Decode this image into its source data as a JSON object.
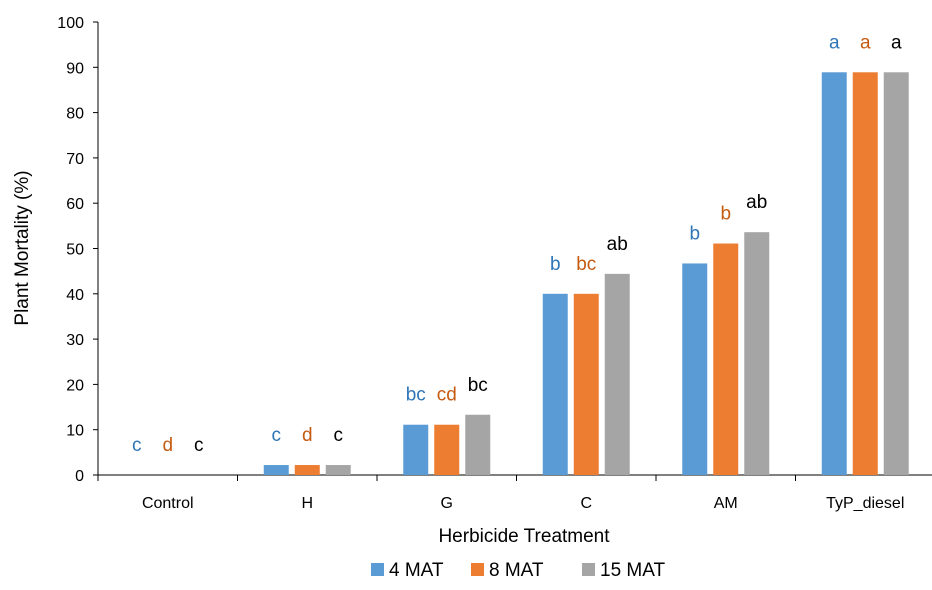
{
  "chart_data": {
    "type": "bar",
    "title": "",
    "xlabel": "Herbicide Treatment",
    "ylabel": "Plant Mortality (%)",
    "ylim": [
      0,
      100
    ],
    "yticks": [
      0,
      10,
      20,
      30,
      40,
      50,
      60,
      70,
      80,
      90,
      100
    ],
    "grid": false,
    "legend_position": "bottom",
    "categories": [
      "Control",
      "H",
      "G",
      "C",
      "AM",
      "TyP_diesel"
    ],
    "series": [
      {
        "name": "4 MAT",
        "color": "#5b9bd5",
        "label_color": "#2e75b6",
        "values": [
          0,
          2.2,
          11.1,
          40,
          46.7,
          88.9
        ],
        "sig_labels": [
          "c",
          "c",
          "bc",
          "b",
          "b",
          "a"
        ]
      },
      {
        "name": "8 MAT",
        "color": "#ed7d31",
        "label_color": "#c55a11",
        "values": [
          0,
          2.2,
          11.1,
          40,
          51.1,
          88.9
        ],
        "sig_labels": [
          "d",
          "d",
          "cd",
          "bc",
          "b",
          "a"
        ]
      },
      {
        "name": "15 MAT",
        "color": "#a5a5a5",
        "label_color": "#000000",
        "values": [
          0,
          2.2,
          13.3,
          44.4,
          53.6,
          88.9
        ],
        "sig_labels": [
          "c",
          "c",
          "bc",
          "ab",
          "ab",
          "a"
        ]
      }
    ]
  }
}
